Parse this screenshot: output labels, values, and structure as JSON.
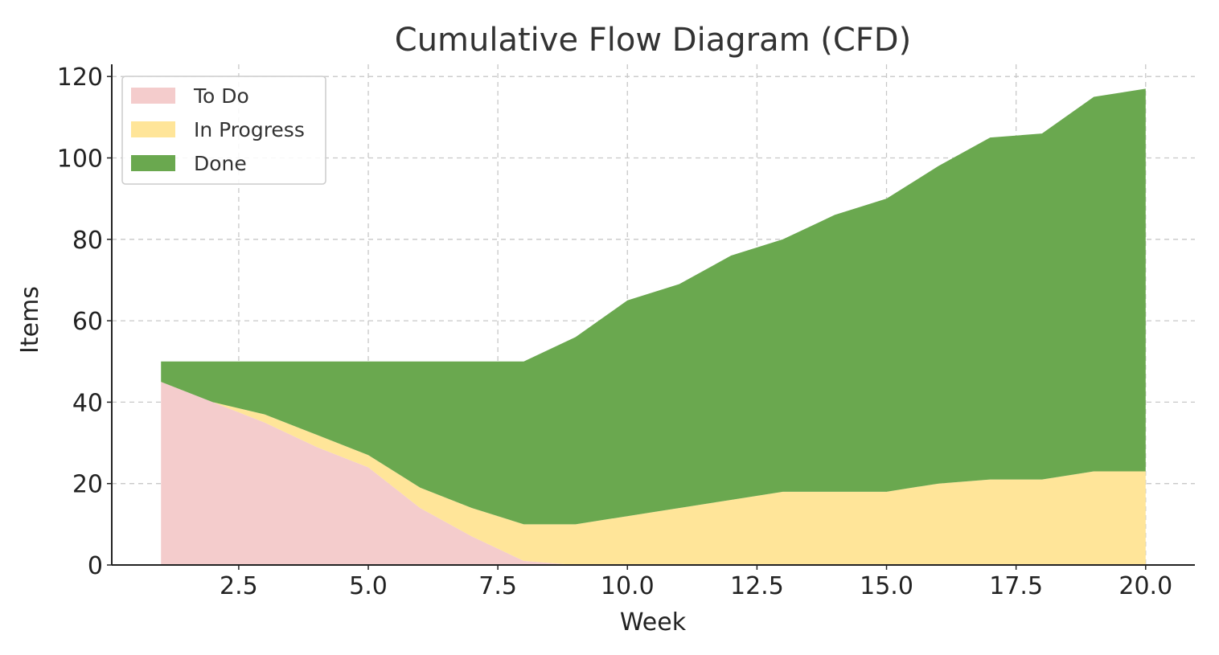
{
  "chart_data": {
    "type": "area",
    "stacked": true,
    "title": "Cumulative Flow Diagram (CFD)",
    "xlabel": "Week",
    "ylabel": "Items",
    "x": [
      1,
      2,
      3,
      4,
      5,
      6,
      7,
      8,
      9,
      10,
      11,
      12,
      13,
      14,
      15,
      16,
      17,
      18,
      19,
      20
    ],
    "series": [
      {
        "name": "To Do",
        "color": "#f4cccc",
        "values": [
          45,
          40,
          35,
          29,
          24,
          14,
          7,
          1,
          0,
          0,
          0,
          0,
          0,
          0,
          0,
          0,
          0,
          0,
          0,
          0
        ]
      },
      {
        "name": "In Progress",
        "color": "#ffe599",
        "values": [
          0,
          0,
          2,
          3,
          3,
          5,
          7,
          9,
          10,
          12,
          14,
          16,
          18,
          18,
          18,
          20,
          21,
          21,
          23,
          23
        ]
      },
      {
        "name": "Done",
        "color": "#6aa84f",
        "values": [
          5,
          10,
          13,
          18,
          23,
          31,
          36,
          40,
          46,
          53,
          55,
          60,
          62,
          68,
          72,
          78,
          84,
          85,
          92,
          94
        ]
      }
    ],
    "xlim": [
      0.05,
      20.95
    ],
    "ylim": [
      0,
      123
    ],
    "xticks": [
      2.5,
      5.0,
      7.5,
      10.0,
      12.5,
      15.0,
      17.5,
      20.0
    ],
    "xtick_labels": [
      "2.5",
      "5.0",
      "7.5",
      "10.0",
      "12.5",
      "15.0",
      "17.5",
      "20.0"
    ],
    "yticks": [
      0,
      20,
      40,
      60,
      80,
      100,
      120
    ],
    "ytick_labels": [
      "0",
      "20",
      "40",
      "60",
      "80",
      "100",
      "120"
    ],
    "grid": true,
    "legend_position": "top-left"
  }
}
